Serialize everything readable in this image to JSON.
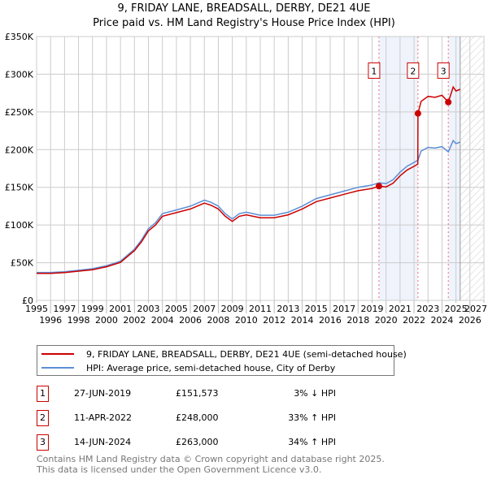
{
  "chart_data": {
    "type": "line",
    "title": "9, FRIDAY LANE, BREADSALL, DERBY, DE21 4UE",
    "subtitle": "Price paid vs. HM Land Registry's House Price Index (HPI)",
    "xlim": [
      1995,
      2027
    ],
    "ylim": [
      0,
      350000
    ],
    "x_ticks": [
      "1995",
      "1996",
      "1997",
      "1998",
      "1999",
      "2000",
      "2001",
      "2002",
      "2003",
      "2004",
      "2005",
      "2006",
      "2007",
      "2008",
      "2009",
      "2010",
      "2011",
      "2012",
      "2013",
      "2014",
      "2015",
      "2016",
      "2017",
      "2018",
      "2019",
      "2020",
      "2021",
      "2022",
      "2023",
      "2024",
      "2025",
      "2026",
      "2027"
    ],
    "y_ticks": [
      {
        "v": 0,
        "label": "£0"
      },
      {
        "v": 50000,
        "label": "£50K"
      },
      {
        "v": 100000,
        "label": "£100K"
      },
      {
        "v": 150000,
        "label": "£150K"
      },
      {
        "v": 200000,
        "label": "£200K"
      },
      {
        "v": 250000,
        "label": "£250K"
      },
      {
        "v": 300000,
        "label": "£300K"
      },
      {
        "v": 350000,
        "label": "£350K"
      }
    ],
    "grid": true,
    "series": [
      {
        "name": "9, FRIDAY LANE, BREADSALL, DERBY, DE21 4UE (semi-detached house)",
        "color": "#cc0000",
        "x": [
          1995,
          1996,
          1997,
          1998,
          1999,
          2000,
          2001,
          2002,
          2002.5,
          2003,
          2003.5,
          2004,
          2005,
          2006,
          2007,
          2007.5,
          2008,
          2008.5,
          2009,
          2009.5,
          2010,
          2011,
          2012,
          2013,
          2014,
          2015,
          2016,
          2017,
          2018,
          2019,
          2019.49,
          2020,
          2020.5,
          2021,
          2021.5,
          2022,
          2022.27,
          2022.28,
          2022.5,
          2023,
          2023.5,
          2024,
          2024.45,
          2024.8,
          2025,
          2025.3
        ],
        "y": [
          35900,
          35900,
          36900,
          38800,
          40700,
          44600,
          50400,
          66000,
          77600,
          92200,
          99900,
          111600,
          116400,
          121300,
          129000,
          126100,
          121300,
          111600,
          104800,
          111600,
          113500,
          109600,
          109600,
          113500,
          121300,
          131000,
          135800,
          140700,
          145500,
          148400,
          151573,
          150600,
          155400,
          165200,
          173000,
          177800,
          180800,
          248000,
          264000,
          270600,
          269300,
          272000,
          263000,
          283000,
          277700,
          280000
        ]
      },
      {
        "name": "HPI: Average price, semi-detached house, City of Derby",
        "color": "#5b8fd6",
        "x": [
          1995,
          1996,
          1997,
          1998,
          1999,
          2000,
          2001,
          2002,
          2002.5,
          2003,
          2003.5,
          2004,
          2005,
          2006,
          2007,
          2007.5,
          2008,
          2008.5,
          2009,
          2009.5,
          2010,
          2011,
          2012,
          2013,
          2014,
          2015,
          2016,
          2017,
          2018,
          2019,
          2019.49,
          2020,
          2020.5,
          2021,
          2021.5,
          2022,
          2022.27,
          2022.28,
          2022.5,
          2023,
          2023.5,
          2024,
          2024.45,
          2024.8,
          2025,
          2025.3
        ],
        "y": [
          37000,
          37000,
          38000,
          40000,
          42000,
          46000,
          52000,
          68000,
          80000,
          95000,
          103000,
          115000,
          120000,
          125000,
          133000,
          130000,
          125000,
          115000,
          108000,
          115000,
          117000,
          113000,
          113000,
          117000,
          125000,
          135000,
          140000,
          145000,
          150000,
          153000,
          156000,
          155000,
          160000,
          170000,
          178000,
          183000,
          186000,
          186000,
          198000,
          203000,
          202000,
          204000,
          197000,
          212000,
          208000,
          210000
        ]
      }
    ],
    "sales": [
      {
        "n": "1",
        "x": 2019.49,
        "y": 151573
      },
      {
        "n": "2",
        "x": 2022.28,
        "y": 248000
      },
      {
        "n": "3",
        "x": 2024.45,
        "y": 263000
      }
    ],
    "shaded": [
      [
        2019.49,
        2022.28
      ],
      [
        2024.45,
        2025.3
      ]
    ],
    "forecast_from": 2025.3,
    "legend_position": "below"
  },
  "legend": [
    "9, FRIDAY LANE, BREADSALL, DERBY, DE21 4UE (semi-detached house)",
    "HPI: Average price, semi-detached house, City of Derby"
  ],
  "transactions": [
    {
      "n": "1",
      "date": "27-JUN-2019",
      "price": "£151,573",
      "hpi": "3% ↓ HPI"
    },
    {
      "n": "2",
      "date": "11-APR-2022",
      "price": "£248,000",
      "hpi": "33% ↑ HPI"
    },
    {
      "n": "3",
      "date": "14-JUN-2024",
      "price": "£263,000",
      "hpi": "34% ↑ HPI"
    }
  ],
  "footer": [
    "Contains HM Land Registry data © Crown copyright and database right 2025.",
    "This data is licensed under the Open Government Licence v3.0."
  ]
}
